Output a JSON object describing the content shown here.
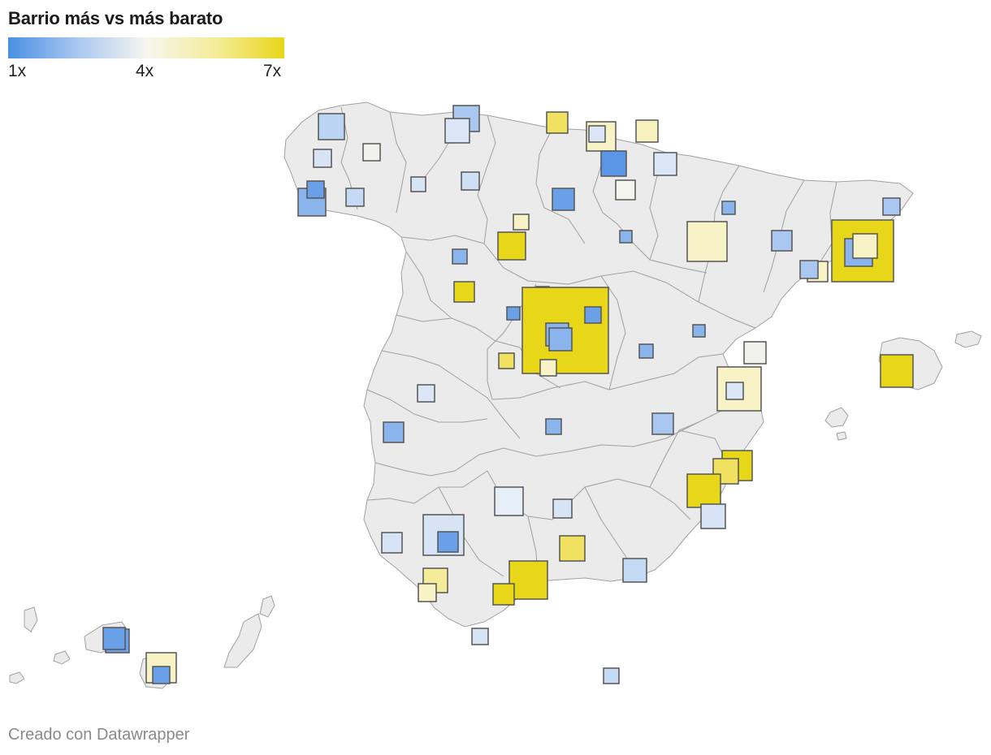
{
  "title": "Barrio más vs más barato",
  "legend": {
    "min_label": "1x",
    "mid_label": "4x",
    "max_label": "7x",
    "colors": [
      "#4a90e2",
      "#f6f6ef",
      "#e8d618"
    ]
  },
  "credit": "Creado con Datawrapper",
  "map": {
    "land_color": "#ebebeb",
    "border_color": "#a0a0a0",
    "marker_shape": "square",
    "marker_border": "#555555"
  }
}
